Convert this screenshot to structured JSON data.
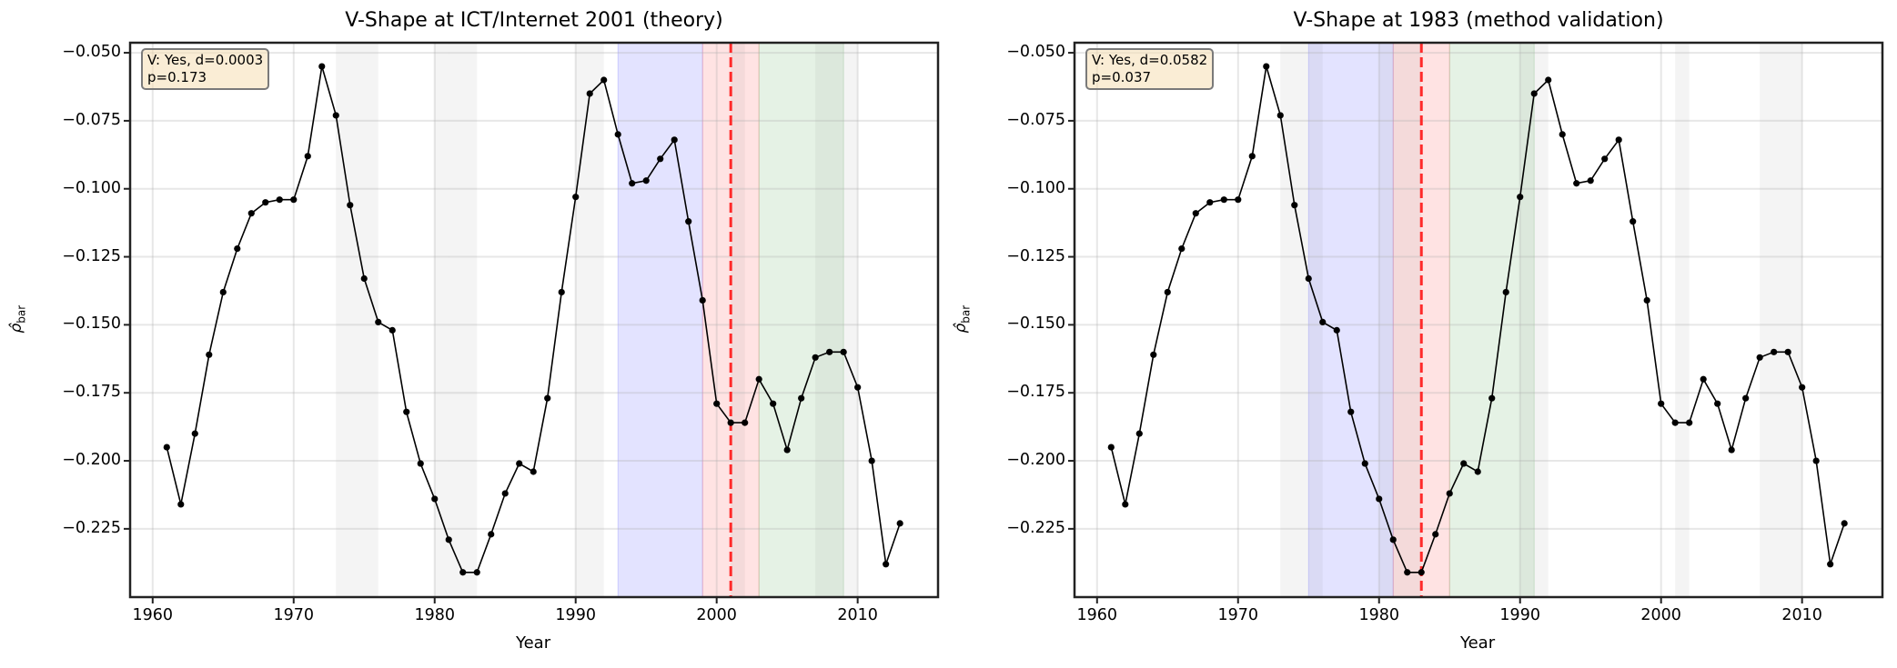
{
  "figure": {
    "panels": [
      {
        "title": "V-Shape at ICT/Internet 2001 (theory)",
        "xlabel": "Year",
        "ylabel": "ρ̂bar",
        "annotation": {
          "line1": "V: Yes, d=0.0003",
          "line2": "p=0.173"
        },
        "event_year": 2001
      },
      {
        "title": "V-Shape at 1983 (method validation)",
        "xlabel": "Year",
        "ylabel": "ρ̂bar",
        "annotation": {
          "line1": "V: Yes, d=0.0582",
          "line2": "p=0.037"
        },
        "event_year": 1983
      }
    ],
    "yticks": [
      "−0.050",
      "−0.075",
      "−0.100",
      "−0.125",
      "−0.150",
      "−0.175",
      "−0.200",
      "−0.225"
    ],
    "xticks": [
      "1960",
      "1970",
      "1980",
      "1990",
      "2000",
      "2010"
    ],
    "colors": {
      "line": "#000000",
      "event_line": "#ff2a2a",
      "pre_band": "#0000ff",
      "event_band": "#ff0000",
      "post_band": "#008000",
      "recession_band": "#808080",
      "annotation_bg": "#f5deb3",
      "grid": "#e6e6e6"
    }
  },
  "chart_data": [
    {
      "type": "line",
      "title": "V-Shape at ICT/Internet 2001 (theory)",
      "xlabel": "Year",
      "ylabel": "ρ̂_bar",
      "xlim": [
        1958.4,
        2015.7
      ],
      "ylim": [
        -0.2501,
        -0.0463
      ],
      "grid": true,
      "x": [
        1961,
        1962,
        1963,
        1964,
        1965,
        1966,
        1967,
        1968,
        1969,
        1970,
        1971,
        1972,
        1973,
        1974,
        1975,
        1976,
        1977,
        1978,
        1979,
        1980,
        1981,
        1982,
        1983,
        1984,
        1985,
        1986,
        1987,
        1988,
        1989,
        1990,
        1991,
        1992,
        1993,
        1994,
        1995,
        1996,
        1997,
        1998,
        1999,
        2000,
        2001,
        2002,
        2003,
        2004,
        2005,
        2006,
        2007,
        2008,
        2009,
        2010,
        2011,
        2012,
        2013
      ],
      "series": [
        {
          "name": "rho_bar",
          "values": [
            -0.195,
            -0.216,
            -0.19,
            -0.161,
            -0.138,
            -0.122,
            -0.109,
            -0.105,
            -0.104,
            -0.104,
            -0.088,
            -0.055,
            -0.073,
            -0.106,
            -0.133,
            -0.149,
            -0.152,
            -0.182,
            -0.201,
            -0.214,
            -0.229,
            -0.241,
            -0.241,
            -0.227,
            -0.212,
            -0.201,
            -0.204,
            -0.177,
            -0.138,
            -0.103,
            -0.065,
            -0.06,
            -0.08,
            -0.098,
            -0.097,
            -0.089,
            -0.082,
            -0.112,
            -0.141,
            -0.179,
            -0.186,
            -0.186,
            -0.17,
            -0.179,
            -0.196,
            -0.177,
            -0.162,
            -0.16,
            -0.16,
            -0.173,
            -0.2,
            -0.238,
            -0.223
          ]
        }
      ],
      "event_line": 2001,
      "bands": [
        {
          "kind": "pre",
          "from": 1993,
          "to": 1999
        },
        {
          "kind": "event",
          "from": 1999,
          "to": 2003
        },
        {
          "kind": "post",
          "from": 2003,
          "to": 2009
        }
      ],
      "recessions": [
        [
          1973,
          1976
        ],
        [
          1980,
          1981
        ],
        [
          1981,
          1983
        ],
        [
          1990,
          1992
        ],
        [
          2001,
          2002
        ],
        [
          2007,
          2010
        ]
      ],
      "annotation": "V: Yes, d=0.0003\np=0.173"
    },
    {
      "type": "line",
      "title": "V-Shape at 1983 (method validation)",
      "xlabel": "Year",
      "ylabel": "ρ̂_bar",
      "xlim": [
        1958.4,
        2015.7
      ],
      "ylim": [
        -0.2501,
        -0.0463
      ],
      "grid": true,
      "x": [
        1961,
        1962,
        1963,
        1964,
        1965,
        1966,
        1967,
        1968,
        1969,
        1970,
        1971,
        1972,
        1973,
        1974,
        1975,
        1976,
        1977,
        1978,
        1979,
        1980,
        1981,
        1982,
        1983,
        1984,
        1985,
        1986,
        1987,
        1988,
        1989,
        1990,
        1991,
        1992,
        1993,
        1994,
        1995,
        1996,
        1997,
        1998,
        1999,
        2000,
        2001,
        2002,
        2003,
        2004,
        2005,
        2006,
        2007,
        2008,
        2009,
        2010,
        2011,
        2012,
        2013
      ],
      "series": [
        {
          "name": "rho_bar",
          "values": [
            -0.195,
            -0.216,
            -0.19,
            -0.161,
            -0.138,
            -0.122,
            -0.109,
            -0.105,
            -0.104,
            -0.104,
            -0.088,
            -0.055,
            -0.073,
            -0.106,
            -0.133,
            -0.149,
            -0.152,
            -0.182,
            -0.201,
            -0.214,
            -0.229,
            -0.241,
            -0.241,
            -0.227,
            -0.212,
            -0.201,
            -0.204,
            -0.177,
            -0.138,
            -0.103,
            -0.065,
            -0.06,
            -0.08,
            -0.098,
            -0.097,
            -0.089,
            -0.082,
            -0.112,
            -0.141,
            -0.179,
            -0.186,
            -0.186,
            -0.17,
            -0.179,
            -0.196,
            -0.177,
            -0.162,
            -0.16,
            -0.16,
            -0.173,
            -0.2,
            -0.238,
            -0.223
          ]
        }
      ],
      "event_line": 1983,
      "bands": [
        {
          "kind": "pre",
          "from": 1975,
          "to": 1981
        },
        {
          "kind": "event",
          "from": 1981,
          "to": 1985
        },
        {
          "kind": "post",
          "from": 1985,
          "to": 1991
        }
      ],
      "recessions": [
        [
          1973,
          1976
        ],
        [
          1980,
          1981
        ],
        [
          1981,
          1983
        ],
        [
          1990,
          1992
        ],
        [
          2001,
          2002
        ],
        [
          2007,
          2010
        ]
      ],
      "annotation": "V: Yes, d=0.0582\np=0.037"
    }
  ]
}
